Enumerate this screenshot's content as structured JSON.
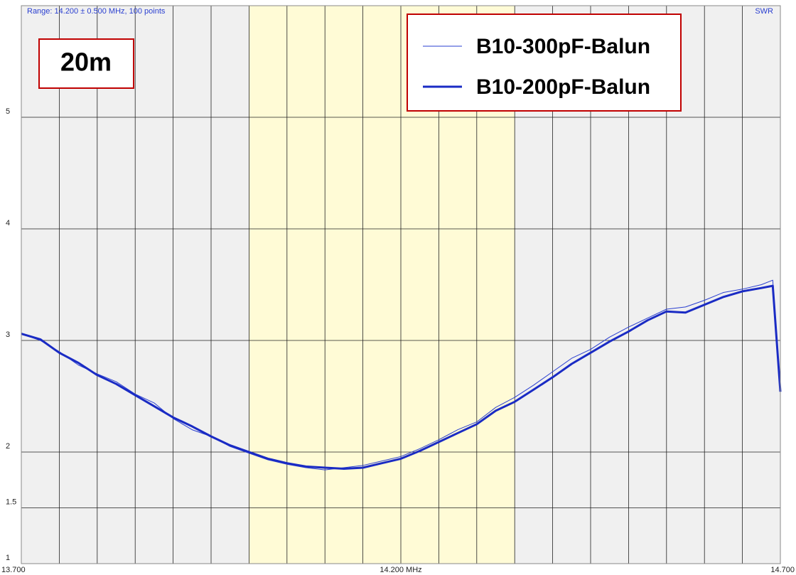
{
  "chart_data": {
    "type": "line",
    "header": "Range: 14.200 ± 0.500 MHz, 100 points",
    "y_label": "SWR",
    "band_label": "20m",
    "x": [
      13.7,
      13.725,
      13.75,
      13.775,
      13.8,
      13.825,
      13.85,
      13.875,
      13.9,
      13.925,
      13.95,
      13.975,
      14.0,
      14.025,
      14.05,
      14.075,
      14.1,
      14.125,
      14.15,
      14.175,
      14.2,
      14.225,
      14.25,
      14.275,
      14.3,
      14.325,
      14.35,
      14.375,
      14.4,
      14.425,
      14.45,
      14.475,
      14.5,
      14.525,
      14.55,
      14.575,
      14.6,
      14.625,
      14.65,
      14.675,
      14.69,
      14.7
    ],
    "series": [
      {
        "name": "B10-300pF-Balun",
        "color": "#2a3fd0",
        "width": 1,
        "values": [
          3.06,
          3.0,
          2.9,
          2.78,
          2.7,
          2.63,
          2.52,
          2.44,
          2.3,
          2.2,
          2.14,
          2.05,
          1.99,
          1.93,
          1.89,
          1.86,
          1.84,
          1.86,
          1.88,
          1.92,
          1.96,
          2.03,
          2.11,
          2.2,
          2.27,
          2.4,
          2.49,
          2.6,
          2.72,
          2.84,
          2.92,
          3.03,
          3.12,
          3.2,
          3.28,
          3.3,
          3.36,
          3.43,
          3.46,
          3.5,
          3.54,
          2.54
        ]
      },
      {
        "name": "B10-200pF-Balun",
        "color": "#1a2bc4",
        "width": 3,
        "values": [
          3.06,
          3.01,
          2.89,
          2.8,
          2.69,
          2.61,
          2.51,
          2.41,
          2.31,
          2.23,
          2.14,
          2.06,
          2.0,
          1.94,
          1.9,
          1.87,
          1.86,
          1.85,
          1.86,
          1.9,
          1.94,
          2.01,
          2.09,
          2.17,
          2.25,
          2.37,
          2.45,
          2.56,
          2.67,
          2.79,
          2.89,
          2.99,
          3.08,
          3.18,
          3.26,
          3.25,
          3.32,
          3.39,
          3.44,
          3.47,
          3.49,
          2.54
        ]
      }
    ],
    "band": [
      14.0,
      14.35
    ],
    "xlim": [
      13.7,
      14.7
    ],
    "xticks": [
      {
        "value": 13.7,
        "label": "13.700"
      },
      {
        "value": 14.2,
        "label": "14.200 MHz"
      },
      {
        "value": 14.7,
        "label": "14.700"
      }
    ],
    "xgrid": [
      13.75,
      13.8,
      13.85,
      13.9,
      13.95,
      14.0,
      14.05,
      14.1,
      14.15,
      14.2,
      14.25,
      14.3,
      14.35,
      14.4,
      14.45,
      14.5,
      14.55,
      14.6,
      14.65
    ],
    "ylim": [
      1,
      6
    ],
    "yticks": [
      1,
      1.5,
      2,
      3,
      4,
      5
    ],
    "grid": true
  }
}
